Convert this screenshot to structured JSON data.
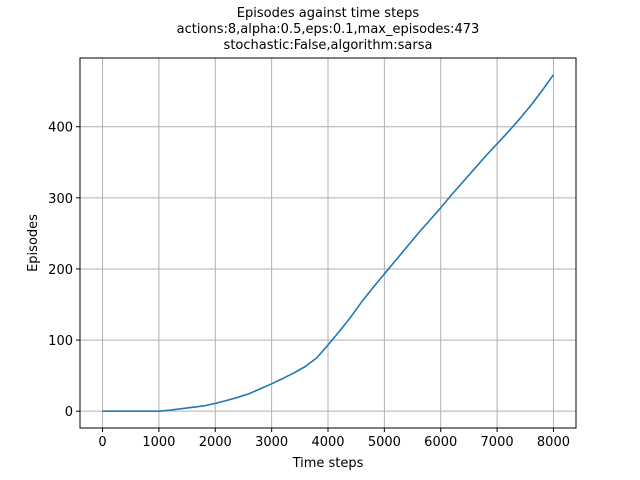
{
  "chart_data": {
    "type": "line",
    "title": "Episodes against time steps",
    "subtitle_lines": [
      "actions:8,alpha:0.5,eps:0.1,max_episodes:473",
      "stochastic:False,algorithm:sarsa"
    ],
    "xlabel": "Time steps",
    "ylabel": "Episodes",
    "xlim": [
      -400,
      8400
    ],
    "ylim": [
      -23.65,
      496.65
    ],
    "xticks": [
      0,
      1000,
      2000,
      3000,
      4000,
      5000,
      6000,
      7000,
      8000
    ],
    "yticks": [
      0,
      100,
      200,
      300,
      400
    ],
    "grid": true,
    "legend": "none",
    "series": [
      {
        "color": "#1f77b4",
        "x": [
          0,
          500,
          1000,
          1200,
          1400,
          1600,
          1800,
          2000,
          2200,
          2400,
          2600,
          2800,
          3000,
          3200,
          3400,
          3600,
          3800,
          4000,
          4200,
          4400,
          4600,
          4800,
          5000,
          5200,
          5400,
          5600,
          5800,
          6000,
          6200,
          6400,
          6600,
          6800,
          7000,
          7200,
          7400,
          7600,
          7800,
          8000
        ],
        "y": [
          0,
          0,
          0,
          1.5,
          3.5,
          5.5,
          7.5,
          11,
          15,
          19.5,
          24.5,
          31.5,
          38.5,
          46,
          54,
          63,
          75,
          93,
          112,
          132,
          154,
          174,
          193,
          212,
          231,
          250,
          268,
          286,
          305,
          323,
          341,
          359,
          376,
          393,
          411,
          430,
          451,
          473
        ]
      }
    ]
  }
}
